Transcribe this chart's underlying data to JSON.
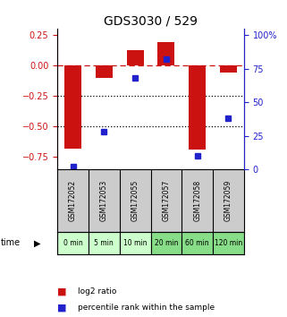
{
  "title": "GDS3030 / 529",
  "samples": [
    "GSM172052",
    "GSM172053",
    "GSM172055",
    "GSM172057",
    "GSM172058",
    "GSM172059"
  ],
  "time_labels": [
    "0 min",
    "5 min",
    "10 min",
    "20 min",
    "60 min",
    "120 min"
  ],
  "log2_ratio": [
    -0.68,
    -0.1,
    0.12,
    0.19,
    -0.69,
    -0.06
  ],
  "percentile_rank": [
    2,
    28,
    68,
    82,
    10,
    38
  ],
  "ylim_left": [
    -0.85,
    0.3
  ],
  "ylim_right": [
    0,
    105
  ],
  "yticks_left": [
    0.25,
    0.0,
    -0.25,
    -0.5,
    -0.75
  ],
  "yticks_right": [
    100,
    75,
    50,
    25,
    0
  ],
  "bar_color": "#cc1111",
  "dot_color": "#2222cc",
  "background_color": "#ffffff",
  "gsm_bg_color": "#cccccc",
  "time_bg_colors": [
    "#ccffcc",
    "#ccffcc",
    "#ccffcc",
    "#88dd88",
    "#88dd88",
    "#88dd88"
  ],
  "legend_bar_label": "log2 ratio",
  "legend_dot_label": "percentile rank within the sample"
}
